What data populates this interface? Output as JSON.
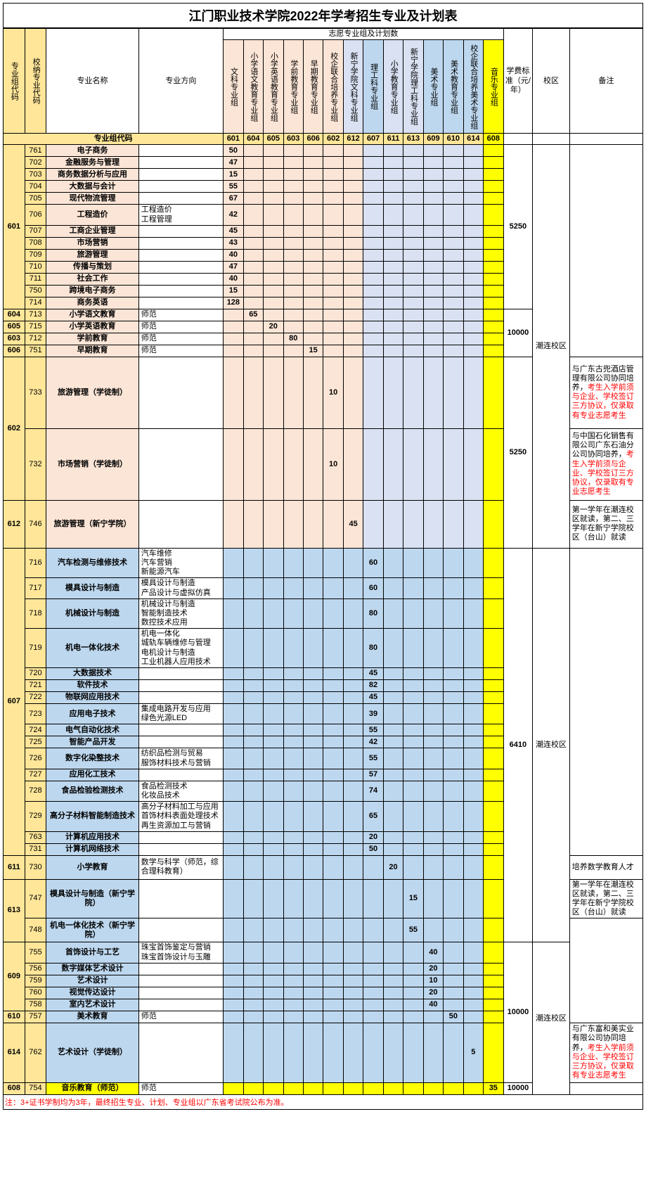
{
  "title": "江门职业技术学院2022年学考招生专业及计划表",
  "headers": {
    "top_group": "志愿专业组及计划数",
    "group_code": "专业组代码",
    "internal_code": "校纳专业代码",
    "major_name": "专业名称",
    "major_dir": "专业方向",
    "tuition": "学费标准（元/年）",
    "campus": "校区",
    "remark": "备注",
    "cols": [
      "文科专业组",
      "小学语文教育专业组",
      "小学英语教育专业组",
      "学前教育专业组",
      "早期教育专业组",
      "校企联合培养专业组",
      "新宁学院文科专业组",
      "理工科专业组",
      "小学教育专业组",
      "新宁学院理工科专业组",
      "美术专业组",
      "美术教育专业组",
      "校企联合培养美术专业组",
      "音乐专业组"
    ],
    "group_code_label": "专业组代码",
    "col_codes": [
      "601",
      "604",
      "605",
      "603",
      "606",
      "602",
      "612",
      "607",
      "611",
      "613",
      "609",
      "610",
      "614",
      "608"
    ]
  },
  "rows": [
    {
      "g": "601",
      "c": "761",
      "name": "电子商务",
      "dir": "",
      "v": [
        50,
        "",
        "",
        "",
        "",
        "",
        "",
        "",
        "",
        "",
        "",
        "",
        "",
        ""
      ],
      "t": "5250",
      "campus": "潮连校区",
      "r": "",
      "cls": "pink"
    },
    {
      "g": "601",
      "c": "702",
      "name": "金融服务与管理",
      "dir": "",
      "v": [
        47,
        "",
        "",
        "",
        "",
        "",
        "",
        "",
        "",
        "",
        "",
        "",
        "",
        ""
      ],
      "t": "",
      "campus": "",
      "r": "",
      "cls": "pink"
    },
    {
      "g": "601",
      "c": "703",
      "name": "商务数据分析与应用",
      "dir": "",
      "v": [
        15,
        "",
        "",
        "",
        "",
        "",
        "",
        "",
        "",
        "",
        "",
        "",
        "",
        ""
      ],
      "t": "",
      "campus": "",
      "r": "",
      "cls": "pink"
    },
    {
      "g": "601",
      "c": "704",
      "name": "大数据与会计",
      "dir": "",
      "v": [
        55,
        "",
        "",
        "",
        "",
        "",
        "",
        "",
        "",
        "",
        "",
        "",
        "",
        ""
      ],
      "t": "",
      "campus": "",
      "r": "",
      "cls": "pink"
    },
    {
      "g": "601",
      "c": "705",
      "name": "现代物流管理",
      "dir": "",
      "v": [
        67,
        "",
        "",
        "",
        "",
        "",
        "",
        "",
        "",
        "",
        "",
        "",
        "",
        ""
      ],
      "t": "",
      "campus": "",
      "r": "",
      "cls": "pink"
    },
    {
      "g": "601",
      "c": "706",
      "name": "工程造价",
      "dir": "工程造价\n工程管理",
      "v": [
        42,
        "",
        "",
        "",
        "",
        "",
        "",
        "",
        "",
        "",
        "",
        "",
        "",
        ""
      ],
      "t": "",
      "campus": "",
      "r": "",
      "cls": "pink"
    },
    {
      "g": "601",
      "c": "707",
      "name": "工商企业管理",
      "dir": "",
      "v": [
        45,
        "",
        "",
        "",
        "",
        "",
        "",
        "",
        "",
        "",
        "",
        "",
        "",
        ""
      ],
      "t": "",
      "campus": "",
      "r": "",
      "cls": "pink"
    },
    {
      "g": "601",
      "c": "708",
      "name": "市场营销",
      "dir": "",
      "v": [
        43,
        "",
        "",
        "",
        "",
        "",
        "",
        "",
        "",
        "",
        "",
        "",
        "",
        ""
      ],
      "t": "",
      "campus": "",
      "r": "",
      "cls": "pink"
    },
    {
      "g": "601",
      "c": "709",
      "name": "旅游管理",
      "dir": "",
      "v": [
        40,
        "",
        "",
        "",
        "",
        "",
        "",
        "",
        "",
        "",
        "",
        "",
        "",
        ""
      ],
      "t": "",
      "campus": "",
      "r": "",
      "cls": "pink"
    },
    {
      "g": "601",
      "c": "710",
      "name": "传播与策划",
      "dir": "",
      "v": [
        47,
        "",
        "",
        "",
        "",
        "",
        "",
        "",
        "",
        "",
        "",
        "",
        "",
        ""
      ],
      "t": "",
      "campus": "",
      "r": "",
      "cls": "pink"
    },
    {
      "g": "601",
      "c": "711",
      "name": "社会工作",
      "dir": "",
      "v": [
        40,
        "",
        "",
        "",
        "",
        "",
        "",
        "",
        "",
        "",
        "",
        "",
        "",
        ""
      ],
      "t": "",
      "campus": "",
      "r": "",
      "cls": "pink"
    },
    {
      "g": "601",
      "c": "750",
      "name": "跨境电子商务",
      "dir": "",
      "v": [
        15,
        "",
        "",
        "",
        "",
        "",
        "",
        "",
        "",
        "",
        "",
        "",
        "",
        ""
      ],
      "t": "",
      "campus": "",
      "r": "",
      "cls": "pink"
    },
    {
      "g": "601",
      "c": "714",
      "name": "商务英语",
      "dir": "",
      "v": [
        128,
        "",
        "",
        "",
        "",
        "",
        "",
        "",
        "",
        "",
        "",
        "",
        "",
        ""
      ],
      "t": "",
      "campus": "",
      "r": "",
      "cls": "pink"
    },
    {
      "g": "604",
      "c": "713",
      "name": "小学语文教育",
      "dir": "师范",
      "v": [
        "",
        65,
        "",
        "",
        "",
        "",
        "",
        "",
        "",
        "",
        "",
        "",
        "",
        ""
      ],
      "t": "10000",
      "campus": "",
      "r": "",
      "cls": "pink"
    },
    {
      "g": "605",
      "c": "715",
      "name": "小学英语教育",
      "dir": "师范",
      "v": [
        "",
        "",
        20,
        "",
        "",
        "",
        "",
        "",
        "",
        "",
        "",
        "",
        "",
        ""
      ],
      "t": "",
      "campus": "",
      "r": "",
      "cls": "pink"
    },
    {
      "g": "603",
      "c": "712",
      "name": "学前教育",
      "dir": "师范",
      "v": [
        "",
        "",
        "",
        80,
        "",
        "",
        "",
        "",
        "",
        "",
        "",
        "",
        "",
        ""
      ],
      "t": "",
      "campus": "",
      "r": "",
      "cls": "pink"
    },
    {
      "g": "606",
      "c": "751",
      "name": "早期教育",
      "dir": "师范",
      "v": [
        "",
        "",
        "",
        "",
        15,
        "",
        "",
        "",
        "",
        "",
        "",
        "",
        "",
        ""
      ],
      "t": "",
      "campus": "",
      "r": "",
      "cls": "pink"
    },
    {
      "g": "602",
      "c": "733",
      "name": "旅游管理（学徒制）",
      "dir": "",
      "v": [
        "",
        "",
        "",
        "",
        "",
        10,
        "",
        "",
        "",
        "",
        "",
        "",
        "",
        ""
      ],
      "t": "5250",
      "campus": "",
      "r": "r1",
      "cls": "pink",
      "tall": 6
    },
    {
      "g": "602",
      "c": "732",
      "name": "市场营销（学徒制）",
      "dir": "",
      "v": [
        "",
        "",
        "",
        "",
        "",
        10,
        "",
        "",
        "",
        "",
        "",
        "",
        "",
        ""
      ],
      "t": "",
      "campus": "",
      "r": "r2",
      "cls": "pink",
      "tall": 6
    },
    {
      "g": "612",
      "c": "746",
      "name": "旅游管理（新宁学院）",
      "dir": "",
      "v": [
        "",
        "",
        "",
        "",
        "",
        "",
        45,
        "",
        "",
        "",
        "",
        "",
        "",
        ""
      ],
      "t": "",
      "campus": "",
      "r": "r3",
      "cls": "pink",
      "tall": 4
    },
    {
      "g": "607",
      "c": "716",
      "name": "汽车检测与维修技术",
      "dir": "汽车维修\n汽车营销\n新能源汽车",
      "v": [
        "",
        "",
        "",
        "",
        "",
        "",
        "",
        60,
        "",
        "",
        "",
        "",
        "",
        ""
      ],
      "t": "6410",
      "campus": "潮连校区",
      "r": "",
      "cls": "blue"
    },
    {
      "g": "607",
      "c": "717",
      "name": "模具设计与制造",
      "dir": "模具设计与制造\n产品设计与虚拟仿真",
      "v": [
        "",
        "",
        "",
        "",
        "",
        "",
        "",
        60,
        "",
        "",
        "",
        "",
        "",
        ""
      ],
      "t": "",
      "campus": "",
      "r": "",
      "cls": "blue"
    },
    {
      "g": "607",
      "c": "718",
      "name": "机械设计与制造",
      "dir": "机械设计与制造\n智能制造技术\n数控技术应用",
      "v": [
        "",
        "",
        "",
        "",
        "",
        "",
        "",
        80,
        "",
        "",
        "",
        "",
        "",
        ""
      ],
      "t": "",
      "campus": "",
      "r": "",
      "cls": "blue"
    },
    {
      "g": "607",
      "c": "719",
      "name": "机电一体化技术",
      "dir": "机电一体化\n城轨车辆维修与管理\n电机设计与制造\n工业机器人应用技术",
      "v": [
        "",
        "",
        "",
        "",
        "",
        "",
        "",
        80,
        "",
        "",
        "",
        "",
        "",
        ""
      ],
      "t": "",
      "campus": "",
      "r": "",
      "cls": "blue"
    },
    {
      "g": "607",
      "c": "720",
      "name": "大数据技术",
      "dir": "",
      "v": [
        "",
        "",
        "",
        "",
        "",
        "",
        "",
        45,
        "",
        "",
        "",
        "",
        "",
        ""
      ],
      "t": "",
      "campus": "",
      "r": "",
      "cls": "blue"
    },
    {
      "g": "607",
      "c": "721",
      "name": "软件技术",
      "dir": "",
      "v": [
        "",
        "",
        "",
        "",
        "",
        "",
        "",
        82,
        "",
        "",
        "",
        "",
        "",
        ""
      ],
      "t": "",
      "campus": "",
      "r": "",
      "cls": "blue"
    },
    {
      "g": "607",
      "c": "722",
      "name": "物联网应用技术",
      "dir": "",
      "v": [
        "",
        "",
        "",
        "",
        "",
        "",
        "",
        45,
        "",
        "",
        "",
        "",
        "",
        ""
      ],
      "t": "",
      "campus": "",
      "r": "",
      "cls": "blue"
    },
    {
      "g": "607",
      "c": "723",
      "name": "应用电子技术",
      "dir": "集成电路开发与应用\n绿色光源LED",
      "v": [
        "",
        "",
        "",
        "",
        "",
        "",
        "",
        39,
        "",
        "",
        "",
        "",
        "",
        ""
      ],
      "t": "",
      "campus": "",
      "r": "",
      "cls": "blue"
    },
    {
      "g": "607",
      "c": "724",
      "name": "电气自动化技术",
      "dir": "",
      "v": [
        "",
        "",
        "",
        "",
        "",
        "",
        "",
        55,
        "",
        "",
        "",
        "",
        "",
        ""
      ],
      "t": "",
      "campus": "",
      "r": "",
      "cls": "blue"
    },
    {
      "g": "607",
      "c": "725",
      "name": "智能产品开发",
      "dir": "",
      "v": [
        "",
        "",
        "",
        "",
        "",
        "",
        "",
        42,
        "",
        "",
        "",
        "",
        "",
        ""
      ],
      "t": "",
      "campus": "",
      "r": "",
      "cls": "blue"
    },
    {
      "g": "607",
      "c": "726",
      "name": "数字化染整技术",
      "dir": "纺织品检测与贸易\n服饰材料技术与营销",
      "v": [
        "",
        "",
        "",
        "",
        "",
        "",
        "",
        55,
        "",
        "",
        "",
        "",
        "",
        ""
      ],
      "t": "",
      "campus": "",
      "r": "",
      "cls": "blue"
    },
    {
      "g": "607",
      "c": "727",
      "name": "应用化工技术",
      "dir": "",
      "v": [
        "",
        "",
        "",
        "",
        "",
        "",
        "",
        57,
        "",
        "",
        "",
        "",
        "",
        ""
      ],
      "t": "",
      "campus": "",
      "r": "",
      "cls": "blue"
    },
    {
      "g": "607",
      "c": "728",
      "name": "食品检验检测技术",
      "dir": "食品检测技术\n化妆品技术",
      "v": [
        "",
        "",
        "",
        "",
        "",
        "",
        "",
        74,
        "",
        "",
        "",
        "",
        "",
        ""
      ],
      "t": "",
      "campus": "",
      "r": "",
      "cls": "blue"
    },
    {
      "g": "607",
      "c": "729",
      "name": "高分子材料智能制造技术",
      "dir": "高分子材料加工与应用\n首饰材料表面处理技术\n再生资源加工与营销",
      "v": [
        "",
        "",
        "",
        "",
        "",
        "",
        "",
        65,
        "",
        "",
        "",
        "",
        "",
        ""
      ],
      "t": "",
      "campus": "",
      "r": "",
      "cls": "blue"
    },
    {
      "g": "607",
      "c": "763",
      "name": "计算机应用技术",
      "dir": "",
      "v": [
        "",
        "",
        "",
        "",
        "",
        "",
        "",
        20,
        "",
        "",
        "",
        "",
        "",
        ""
      ],
      "t": "",
      "campus": "",
      "r": "",
      "cls": "blue"
    },
    {
      "g": "607",
      "c": "731",
      "name": "计算机网络技术",
      "dir": "",
      "v": [
        "",
        "",
        "",
        "",
        "",
        "",
        "",
        50,
        "",
        "",
        "",
        "",
        "",
        ""
      ],
      "t": "",
      "campus": "",
      "r": "",
      "cls": "blue"
    },
    {
      "g": "611",
      "c": "730",
      "name": "小学教育",
      "dir": "数学与科学（师范，综合理科教育）",
      "v": [
        "",
        "",
        "",
        "",
        "",
        "",
        "",
        "",
        20,
        "",
        "",
        "",
        "",
        ""
      ],
      "t": "",
      "campus": "",
      "r": "r4",
      "cls": "blue",
      "tall": 2
    },
    {
      "g": "613",
      "c": "747",
      "name": "模具设计与制造（新宁学院）",
      "dir": "",
      "v": [
        "",
        "",
        "",
        "",
        "",
        "",
        "",
        "",
        "",
        15,
        "",
        "",
        "",
        ""
      ],
      "t": "",
      "campus": "",
      "r": "r5",
      "cls": "blue",
      "tall": 2
    },
    {
      "g": "613",
      "c": "748",
      "name": "机电一体化技术（新宁学院）",
      "dir": "",
      "v": [
        "",
        "",
        "",
        "",
        "",
        "",
        "",
        "",
        "",
        55,
        "",
        "",
        "",
        ""
      ],
      "t": "",
      "campus": "",
      "r": "",
      "cls": "blue",
      "tall": 2
    },
    {
      "g": "609",
      "c": "755",
      "name": "首饰设计与工艺",
      "dir": "珠宝首饰鉴定与营销\n珠宝首饰设计与玉雕",
      "v": [
        "",
        "",
        "",
        "",
        "",
        "",
        "",
        "",
        "",
        "",
        40,
        "",
        "",
        ""
      ],
      "t": "10000",
      "campus": "潮连校区",
      "r": "",
      "cls": "blue"
    },
    {
      "g": "609",
      "c": "756",
      "name": "数字媒体艺术设计",
      "dir": "",
      "v": [
        "",
        "",
        "",
        "",
        "",
        "",
        "",
        "",
        "",
        "",
        20,
        "",
        "",
        ""
      ],
      "t": "",
      "campus": "",
      "r": "",
      "cls": "blue"
    },
    {
      "g": "609",
      "c": "759",
      "name": "艺术设计",
      "dir": "",
      "v": [
        "",
        "",
        "",
        "",
        "",
        "",
        "",
        "",
        "",
        "",
        10,
        "",
        "",
        ""
      ],
      "t": "",
      "campus": "",
      "r": "",
      "cls": "blue"
    },
    {
      "g": "609",
      "c": "760",
      "name": "视觉传达设计",
      "dir": "",
      "v": [
        "",
        "",
        "",
        "",
        "",
        "",
        "",
        "",
        "",
        "",
        20,
        "",
        "",
        ""
      ],
      "t": "",
      "campus": "",
      "r": "",
      "cls": "blue"
    },
    {
      "g": "609",
      "c": "758",
      "name": "室内艺术设计",
      "dir": "",
      "v": [
        "",
        "",
        "",
        "",
        "",
        "",
        "",
        "",
        "",
        "",
        40,
        "",
        "",
        ""
      ],
      "t": "",
      "campus": "",
      "r": "",
      "cls": "blue"
    },
    {
      "g": "610",
      "c": "757",
      "name": "美术教育",
      "dir": "师范",
      "v": [
        "",
        "",
        "",
        "",
        "",
        "",
        "",
        "",
        "",
        "",
        "",
        50,
        "",
        ""
      ],
      "t": "",
      "campus": "",
      "r": "",
      "cls": "blue"
    },
    {
      "g": "614",
      "c": "762",
      "name": "艺术设计（学徒制）",
      "dir": "",
      "v": [
        "",
        "",
        "",
        "",
        "",
        "",
        "",
        "",
        "",
        "",
        "",
        "",
        5,
        ""
      ],
      "t": "",
      "campus": "",
      "r": "r6",
      "cls": "blue",
      "tall": 5
    },
    {
      "g": "608",
      "c": "754",
      "name": "音乐教育（师范）",
      "dir": "师范",
      "v": [
        "",
        "",
        "",
        "",
        "",
        "",
        "",
        "",
        "",
        "",
        "",
        "",
        "",
        35
      ],
      "t": "10000",
      "campus": "",
      "r": "",
      "cls": "yellow"
    }
  ],
  "remarks": {
    "r1": "与广东古兜酒店管理有限公司协同培养，考生入学前须与企业、学校签订三方协议，仅录取有专业志愿考生",
    "r2": "与中国石化销售有限公司广东石油分公司协同培养，考生入学前须与企业、学校签订三方协议，仅录取有专业志愿考生",
    "r3": "第一学年在潮连校区就读，第二、三学年在新宁学院校区（台山）就读",
    "r4": "培养数学教育人才",
    "r5": "第一学年在潮连校区就读，第二、三学年在新宁学院校区（台山）就读",
    "r6": "与广东富和美实业有限公司协同培养，考生入学前须与企业、学校签订三方协议，仅录取有专业志愿考生"
  },
  "footnote": "注：3+证书学制均为3年，最终招生专业、计划、专业组以广东省考试院公布为准。",
  "colors": {
    "yellow": "#ffe699",
    "byellow": "#ffff00",
    "pink": "#fbe5d6",
    "blue": "#bdd7ee",
    "lblue": "#d9e1f2"
  }
}
